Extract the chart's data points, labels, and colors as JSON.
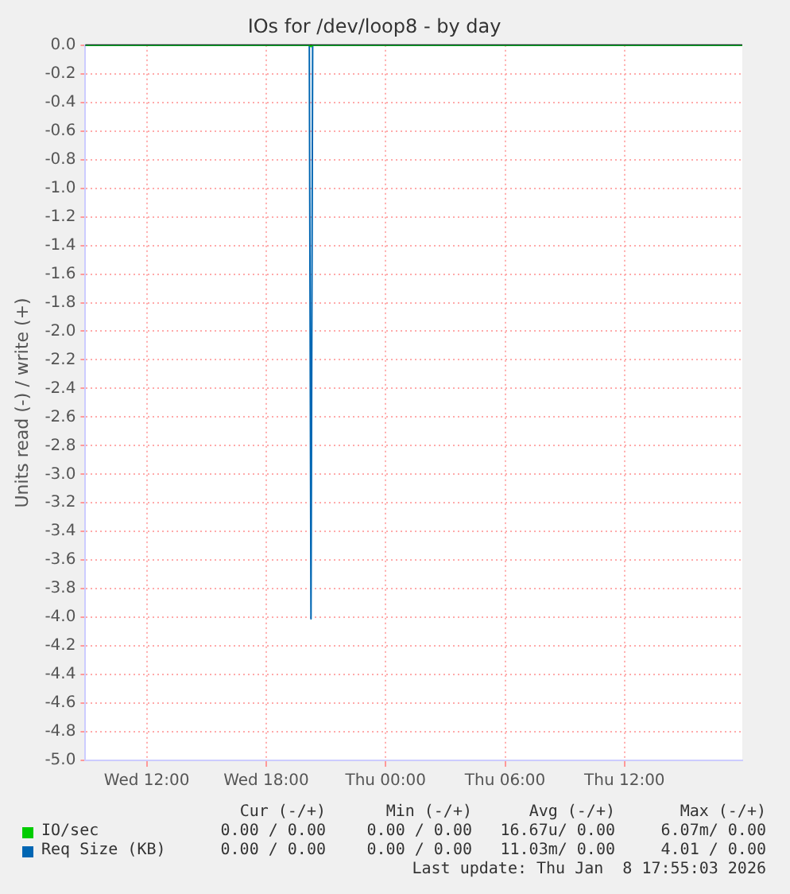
{
  "chart_data": {
    "type": "line",
    "title": "IOs for /dev/loop8 - by day",
    "ylabel": "Units read (-) / write (+)",
    "x": [
      "2026-01-07T08:55",
      "2026-01-07T20:10",
      "2026-01-07T20:15",
      "2026-01-07T20:20",
      "2026-01-08T17:55"
    ],
    "series": [
      {
        "name": "IO/sec",
        "color": "#00cc00",
        "values": [
          0,
          0,
          -0.01,
          0,
          0
        ]
      },
      {
        "name": "Req Size (KB)",
        "color": "#0066b3",
        "values": [
          0,
          0,
          -4.01,
          0,
          0
        ]
      }
    ],
    "xlim": [
      "2026-01-07T08:55",
      "2026-01-08T17:55"
    ],
    "xticks": [
      {
        "value": "2026-01-07T12:00",
        "label": "Wed 12:00"
      },
      {
        "value": "2026-01-07T18:00",
        "label": "Wed 18:00"
      },
      {
        "value": "2026-01-08T00:00",
        "label": "Thu 00:00"
      },
      {
        "value": "2026-01-08T06:00",
        "label": "Thu 06:00"
      },
      {
        "value": "2026-01-08T12:00",
        "label": "Thu 12:00"
      }
    ],
    "ylim": [
      -5,
      0
    ],
    "yticks": [
      {
        "value": 0,
        "label": "0.0"
      },
      {
        "value": -0.2,
        "label": "-0.2"
      },
      {
        "value": -0.4,
        "label": "-0.4"
      },
      {
        "value": -0.6,
        "label": "-0.6"
      },
      {
        "value": -0.8,
        "label": "-0.8"
      },
      {
        "value": -1,
        "label": "-1.0"
      },
      {
        "value": -1.2,
        "label": "-1.2"
      },
      {
        "value": -1.4,
        "label": "-1.4"
      },
      {
        "value": -1.6,
        "label": "-1.6"
      },
      {
        "value": -1.8,
        "label": "-1.8"
      },
      {
        "value": -2,
        "label": "-2.0"
      },
      {
        "value": -2.2,
        "label": "-2.2"
      },
      {
        "value": -2.4,
        "label": "-2.4"
      },
      {
        "value": -2.6,
        "label": "-2.6"
      },
      {
        "value": -2.8,
        "label": "-2.8"
      },
      {
        "value": -3,
        "label": "-3.0"
      },
      {
        "value": -3.2,
        "label": "-3.2"
      },
      {
        "value": -3.4,
        "label": "-3.4"
      },
      {
        "value": -3.6,
        "label": "-3.6"
      },
      {
        "value": -3.8,
        "label": "-3.8"
      },
      {
        "value": -4,
        "label": "-4.0"
      },
      {
        "value": -4.2,
        "label": "-4.2"
      },
      {
        "value": -4.4,
        "label": "-4.4"
      },
      {
        "value": -4.6,
        "label": "-4.6"
      },
      {
        "value": -4.8,
        "label": "-4.8"
      },
      {
        "value": -5,
        "label": "-5.0"
      }
    ],
    "ref_lines": [
      {
        "axis": "y",
        "value": 0,
        "color": "#000000"
      }
    ],
    "grid": true,
    "legend": "bottom",
    "marker": "none",
    "line_style": "solid",
    "annotations": [
      "Cur (-/+)",
      "Min (-/+)",
      "Avg (-/+)",
      "Max (-/+)",
      "0.00 / 0.00",
      "0.00 / 0.00",
      "16.67u/ 0.00",
      "6.07m/ 0.00",
      "0.00 / 0.00",
      "0.00 / 0.00",
      "11.03m/ 0.00",
      "4.01 / 0.00",
      "Last update: Thu Jan  8 17:55:03 2026"
    ]
  }
}
